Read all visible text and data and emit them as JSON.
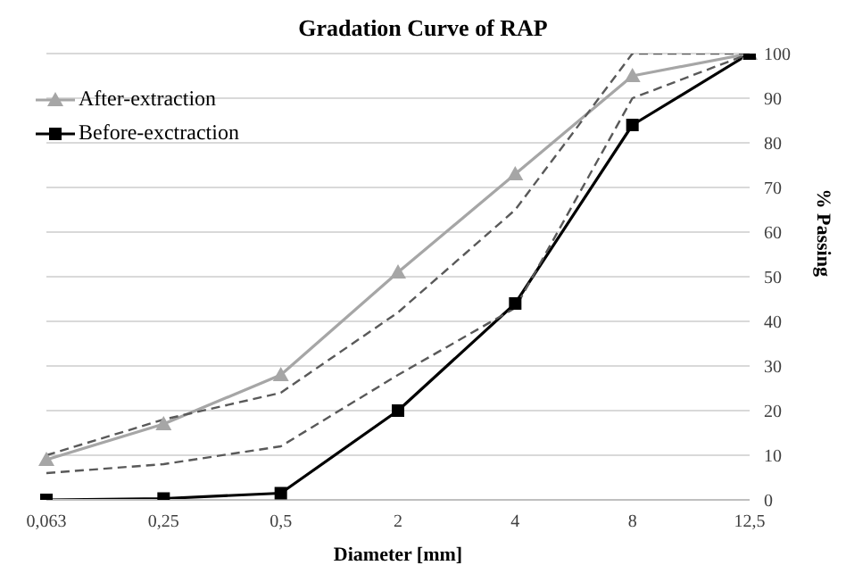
{
  "chart_data": {
    "type": "line",
    "title": "Gradation Curve of RAP",
    "xlabel": "Diameter [mm]",
    "ylabel": "% Passing",
    "categories": [
      "0,063",
      "0,25",
      "0,5",
      "2",
      "4",
      "8",
      "12,5"
    ],
    "series": [
      {
        "name": "After-extraction",
        "color": "#a6a6a6",
        "marker": "triangle",
        "line_style": "solid",
        "values": [
          9,
          17,
          28,
          51,
          73,
          95,
          100
        ]
      },
      {
        "name": "Before-exctraction",
        "color": "#000000",
        "marker": "square",
        "line_style": "solid",
        "values": [
          0,
          0.3,
          1.5,
          20,
          44,
          84,
          100
        ]
      },
      {
        "color": "#595959",
        "marker": "none",
        "line_style": "dashed",
        "values": [
          10,
          18,
          24,
          42,
          65,
          100,
          100
        ]
      },
      {
        "color": "#595959",
        "marker": "none",
        "line_style": "dashed",
        "values": [
          6,
          8,
          12,
          28,
          43,
          90,
          100
        ]
      }
    ],
    "ylim": [
      0,
      100
    ],
    "yticks": [
      0,
      10,
      20,
      30,
      40,
      50,
      60,
      70,
      80,
      90,
      100
    ],
    "grid": "y",
    "legend": "top left"
  }
}
